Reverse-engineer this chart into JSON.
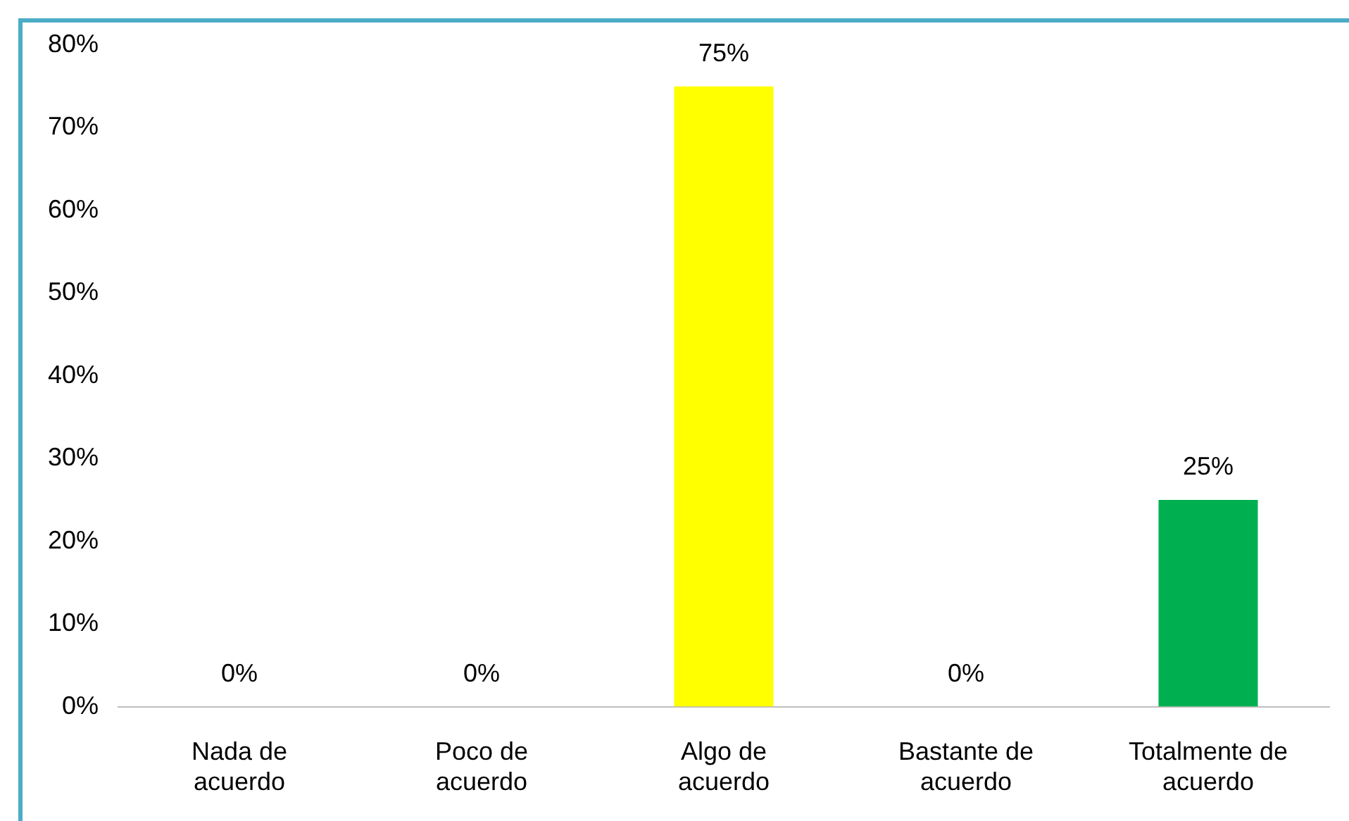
{
  "chart_data": {
    "type": "bar",
    "categories": [
      "Nada de acuerdo",
      "Poco de acuerdo",
      "Algo de acuerdo",
      "Bastante de acuerdo",
      "Totalmente de acuerdo"
    ],
    "values": [
      0,
      0,
      75,
      0,
      25
    ],
    "colors": [
      "#ffff00",
      "#ffff00",
      "#ffff00",
      "#ffff00",
      "#00b050"
    ],
    "value_labels": [
      "0%",
      "0%",
      "75%",
      "0%",
      "25%"
    ],
    "ylim": [
      0,
      80
    ],
    "yticks": [
      {
        "value": 0,
        "label": "0%"
      },
      {
        "value": 10,
        "label": "10%"
      },
      {
        "value": 20,
        "label": "20%"
      },
      {
        "value": 30,
        "label": "30%"
      },
      {
        "value": 40,
        "label": "40%"
      },
      {
        "value": 50,
        "label": "50%"
      },
      {
        "value": 60,
        "label": "60%"
      },
      {
        "value": 70,
        "label": "70%"
      },
      {
        "value": 80,
        "label": "80%"
      }
    ],
    "grid": false,
    "legend": false
  }
}
